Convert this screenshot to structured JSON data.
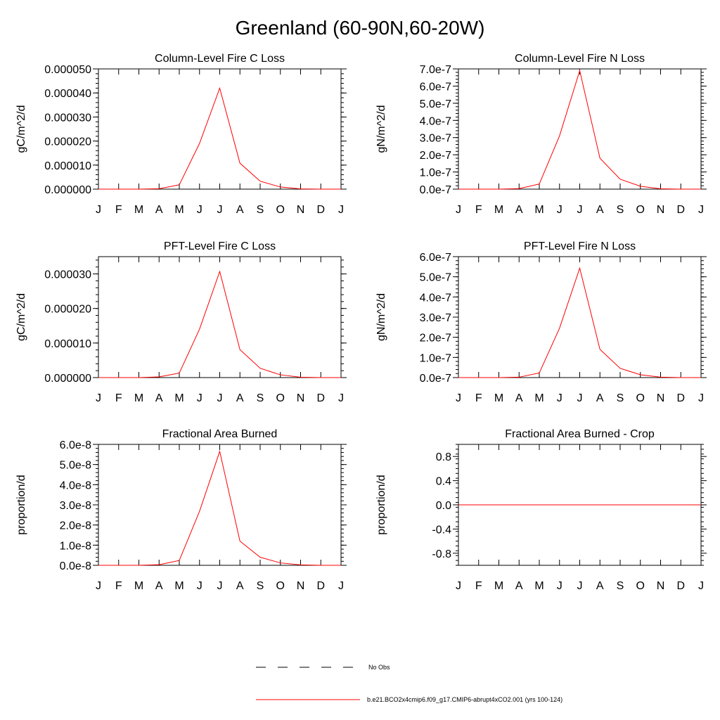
{
  "page_title": "Greenland (60-90N,60-20W)",
  "colors": {
    "model_line": "#ff0000",
    "obs_line": "#000000",
    "axis": "#000000"
  },
  "legend": {
    "obs_label": "No Obs",
    "model_label": "b.e21.BCO2x4cmip6.f09_g17.CMIP6-abrupt4xCO2.001 (yrs 100-124)"
  },
  "chart_data": [
    {
      "type": "line",
      "title": "Column-Level Fire C Loss",
      "ylabel": "gC/m^2/d",
      "categories": [
        "J",
        "F",
        "M",
        "A",
        "M",
        "J",
        "J",
        "A",
        "S",
        "O",
        "N",
        "D",
        "J"
      ],
      "ylim": [
        0,
        5e-05
      ],
      "yticks": [
        0,
        1e-05,
        2e-05,
        3e-05,
        4e-05,
        5e-05
      ],
      "ytick_labels": [
        "0.000000",
        "0.000010",
        "0.000020",
        "0.000030",
        "0.000040",
        "0.000050"
      ],
      "series": [
        {
          "name": "b.e21.BCO2x4cmip6.f09_g17.CMIP6-abrupt4xCO2.001 (yrs 100-124)",
          "values": [
            0,
            0,
            0,
            2e-07,
            1.8e-06,
            1.9e-05,
            4.2e-05,
            1.08e-05,
            3.3e-06,
            9e-07,
            1e-07,
            0,
            0
          ]
        }
      ]
    },
    {
      "type": "line",
      "title": "Column-Level Fire N Loss",
      "ylabel": "gN/m^2/d",
      "categories": [
        "J",
        "F",
        "M",
        "A",
        "M",
        "J",
        "J",
        "A",
        "S",
        "O",
        "N",
        "D",
        "J"
      ],
      "ylim": [
        0,
        7e-07
      ],
      "yticks": [
        0,
        1e-07,
        2e-07,
        3e-07,
        4e-07,
        5e-07,
        6e-07,
        7e-07
      ],
      "ytick_labels": [
        "0.0e-7",
        "1.0e-7",
        "2.0e-7",
        "3.0e-7",
        "4.0e-7",
        "5.0e-7",
        "6.0e-7",
        "7.0e-7"
      ],
      "series": [
        {
          "name": "b.e21.BCO2x4cmip6.f09_g17.CMIP6-abrupt4xCO2.001 (yrs 100-124)",
          "values": [
            0,
            0,
            0,
            3e-09,
            3e-08,
            3.1e-07,
            6.9e-07,
            1.8e-07,
            5.8e-08,
            1.7e-08,
            2e-09,
            0,
            0
          ]
        }
      ]
    },
    {
      "type": "line",
      "title": "PFT-Level Fire C Loss",
      "ylabel": "gC/m^2/d",
      "categories": [
        "J",
        "F",
        "M",
        "A",
        "M",
        "J",
        "J",
        "A",
        "S",
        "O",
        "N",
        "D",
        "J"
      ],
      "ylim": [
        0,
        3.5e-05
      ],
      "yticks": [
        0,
        1e-05,
        2e-05,
        3e-05
      ],
      "ytick_labels": [
        "0.000000",
        "0.000010",
        "0.000020",
        "0.000030"
      ],
      "series": [
        {
          "name": "b.e21.BCO2x4cmip6.f09_g17.CMIP6-abrupt4xCO2.001 (yrs 100-124)",
          "values": [
            0,
            0,
            0,
            2e-07,
            1.3e-06,
            1.4e-05,
            3.07e-05,
            8.1e-06,
            2.7e-06,
            8e-07,
            1e-07,
            0,
            0
          ]
        }
      ]
    },
    {
      "type": "line",
      "title": "PFT-Level Fire N Loss",
      "ylabel": "gN/m^2/d",
      "categories": [
        "J",
        "F",
        "M",
        "A",
        "M",
        "J",
        "J",
        "A",
        "S",
        "O",
        "N",
        "D",
        "J"
      ],
      "ylim": [
        0,
        6e-07
      ],
      "yticks": [
        0,
        1e-07,
        2e-07,
        3e-07,
        4e-07,
        5e-07,
        6e-07
      ],
      "ytick_labels": [
        "0.0e-7",
        "1.0e-7",
        "2.0e-7",
        "3.0e-7",
        "4.0e-7",
        "5.0e-7",
        "6.0e-7"
      ],
      "series": [
        {
          "name": "b.e21.BCO2x4cmip6.f09_g17.CMIP6-abrupt4xCO2.001 (yrs 100-124)",
          "values": [
            0,
            0,
            0,
            2e-09,
            2.3e-08,
            2.45e-07,
            5.43e-07,
            1.4e-07,
            4.6e-08,
            1.4e-08,
            2e-09,
            0,
            0
          ]
        }
      ]
    },
    {
      "type": "line",
      "title": "Fractional Area Burned",
      "ylabel": "proportion/d",
      "categories": [
        "J",
        "F",
        "M",
        "A",
        "M",
        "J",
        "J",
        "A",
        "S",
        "O",
        "N",
        "D",
        "J"
      ],
      "ylim": [
        0,
        6e-08
      ],
      "yticks": [
        0,
        1e-08,
        2e-08,
        3e-08,
        4e-08,
        5e-08,
        6e-08
      ],
      "ytick_labels": [
        "0.0e-8",
        "1.0e-8",
        "2.0e-8",
        "3.0e-8",
        "4.0e-8",
        "5.0e-8",
        "6.0e-8"
      ],
      "series": [
        {
          "name": "b.e21.BCO2x4cmip6.f09_g17.CMIP6-abrupt4xCO2.001 (yrs 100-124)",
          "values": [
            0,
            0,
            0,
            3e-10,
            2.4e-09,
            2.68e-08,
            5.65e-08,
            1.2e-08,
            4e-09,
            1.2e-09,
            2e-10,
            0,
            0
          ]
        }
      ]
    },
    {
      "type": "line",
      "title": "Fractional Area Burned - Crop",
      "ylabel": "proportion/d",
      "categories": [
        "J",
        "F",
        "M",
        "A",
        "M",
        "J",
        "J",
        "A",
        "S",
        "O",
        "N",
        "D",
        "J"
      ],
      "ylim": [
        -1,
        1
      ],
      "yticks": [
        -0.8,
        -0.4,
        0,
        0.4,
        0.8
      ],
      "ytick_labels": [
        "-0.8",
        "-0.4",
        "0.0",
        "0.4",
        "0.8"
      ],
      "series": [
        {
          "name": "b.e21.BCO2x4cmip6.f09_g17.CMIP6-abrupt4xCO2.001 (yrs 100-124)",
          "values": [
            0,
            0,
            0,
            0,
            0,
            0,
            0,
            0,
            0,
            0,
            0,
            0,
            0
          ]
        }
      ]
    }
  ]
}
